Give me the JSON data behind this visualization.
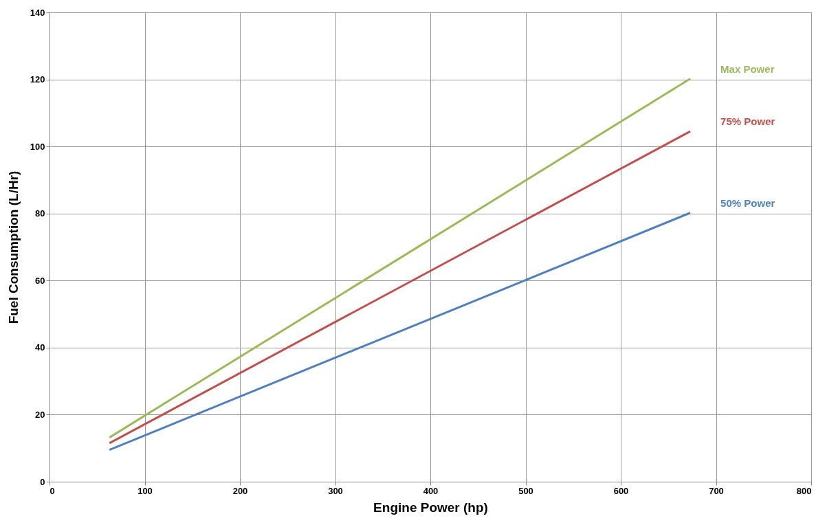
{
  "chart_data": {
    "type": "line",
    "xlabel": "Engine Power (hp)",
    "ylabel": "Fuel Consumption (L/Hr)",
    "xlim": [
      0,
      800
    ],
    "xticks": [
      0,
      100,
      200,
      300,
      400,
      500,
      600,
      700,
      800
    ],
    "ylim": [
      0,
      140
    ],
    "yticks": [
      0,
      20,
      40,
      60,
      80,
      100,
      120,
      140
    ],
    "grid": true,
    "legend": false,
    "marker": "none",
    "line_style": "solid",
    "x": [
      63,
      673
    ],
    "series": [
      {
        "name": "Max Power",
        "color": "#9bbb59",
        "values": [
          13.2,
          120.2
        ]
      },
      {
        "name": "75% Power",
        "color": "#c0504d",
        "values": [
          11.5,
          104.5
        ]
      },
      {
        "name": "50% Power",
        "color": "#4f81bd",
        "values": [
          9.5,
          80.2
        ]
      }
    ]
  }
}
